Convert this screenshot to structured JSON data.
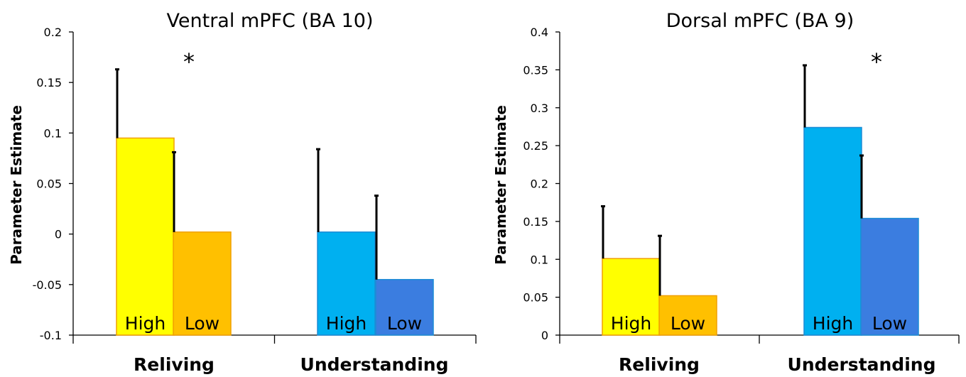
{
  "colors": {
    "reliving_high": "#FFFF00",
    "reliving_low": "#FFC000",
    "understanding_high": "#00B0F0",
    "understanding_low": "#3B7DE0",
    "reliving_edge": "#F0A000",
    "understanding_edge": "#1C8CD6",
    "error_bar": "#000000",
    "axis": "#000000"
  },
  "chart_data": [
    {
      "type": "bar",
      "title": "Ventral mPFC (BA 10)",
      "ylabel": "Parameter Estimate",
      "xlabel": "",
      "ylim": [
        -0.1,
        0.2
      ],
      "yticks": [
        -0.1,
        -0.05,
        0,
        0.05,
        0.1,
        0.15,
        0.2
      ],
      "ytick_labels": [
        "-0.1",
        "-0.05",
        "0",
        "0.05",
        "0.1",
        "0.15",
        "0.2"
      ],
      "grid": false,
      "categories": [
        "Reliving",
        "Understanding"
      ],
      "bar_labels": [
        "High",
        "Low"
      ],
      "values": [
        [
          0.095,
          0.002
        ],
        [
          0.002,
          -0.045
        ]
      ],
      "errors": [
        [
          0.068,
          0.079
        ],
        [
          0.082,
          0.083
        ]
      ],
      "significance": [
        {
          "category": "Reliving",
          "label": "*"
        }
      ]
    },
    {
      "type": "bar",
      "title": "Dorsal mPFC (BA 9)",
      "ylabel": "Parameter Estimate",
      "xlabel": "",
      "ylim": [
        0,
        0.4
      ],
      "yticks": [
        0,
        0.05,
        0.1,
        0.15,
        0.2,
        0.25,
        0.3,
        0.35,
        0.4
      ],
      "ytick_labels": [
        "0",
        "0.05",
        "0.1",
        "0.15",
        "0.2",
        "0.25",
        "0.3",
        "0.35",
        "0.4"
      ],
      "grid": false,
      "categories": [
        "Reliving",
        "Understanding"
      ],
      "bar_labels": [
        "High",
        "Low"
      ],
      "values": [
        [
          0.101,
          0.052
        ],
        [
          0.274,
          0.154
        ]
      ],
      "errors": [
        [
          0.069,
          0.079
        ],
        [
          0.082,
          0.083
        ]
      ],
      "significance": [
        {
          "category": "Understanding",
          "label": "*"
        }
      ]
    }
  ]
}
